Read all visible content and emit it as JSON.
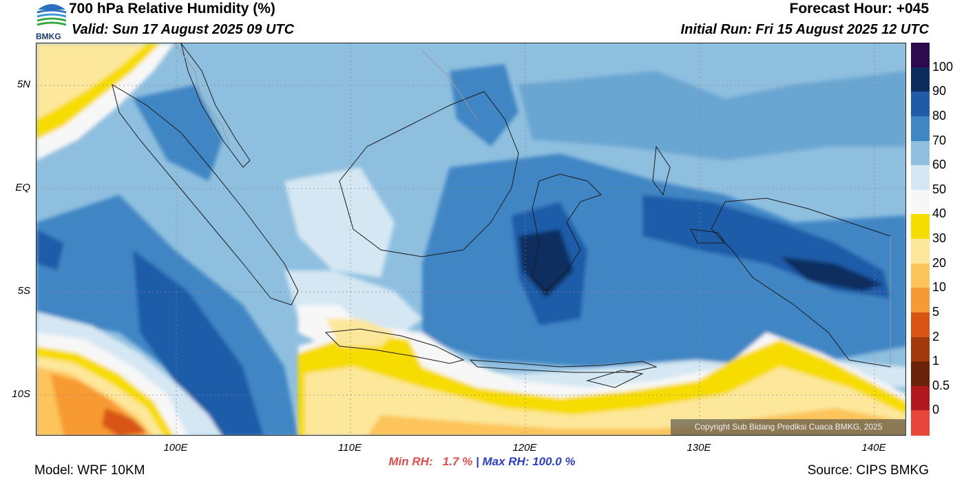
{
  "header": {
    "title": "700 hPa Relative Humidity (%)",
    "valid": "Valid: Sun 17 August 2025 09 UTC",
    "forecast_hour": "Forecast Hour: +045",
    "initial_run": "Initial Run: Fri 15 August 2025 12 UTC"
  },
  "logo": {
    "text": "BMKG",
    "icon": "bmkg-logo-icon"
  },
  "map": {
    "lat_ticks": [
      "5N",
      "EQ",
      "5S",
      "10S"
    ],
    "lon_ticks": [
      "100E",
      "110E",
      "120E",
      "130E",
      "140E"
    ],
    "copyright": "Copyright Sub Bidang Prediksi Cuaca BMKG, 2025"
  },
  "colorbar": {
    "labels": [
      "100",
      "90",
      "80",
      "70",
      "60",
      "50",
      "40",
      "30",
      "20",
      "10",
      "5",
      "2",
      "1",
      "0.5",
      "0"
    ],
    "colors": [
      "#2d0a4e",
      "#0b2d5e",
      "#1f5ba8",
      "#3f86c4",
      "#8fbfdf",
      "#d4e7f3",
      "#f7f7f7",
      "#f7dc00",
      "#fde79a",
      "#fcc45a",
      "#f79a33",
      "#d95413",
      "#a4380d",
      "#6b2208",
      "#b0181d",
      "#e8443a"
    ]
  },
  "footer": {
    "min_rh": "Min RH:   1.7 %",
    "separator": " | ",
    "max_rh": "Max RH: 100.0 %",
    "model": "Model: WRF 10KM",
    "source": "Source: CIPS BMKG"
  }
}
